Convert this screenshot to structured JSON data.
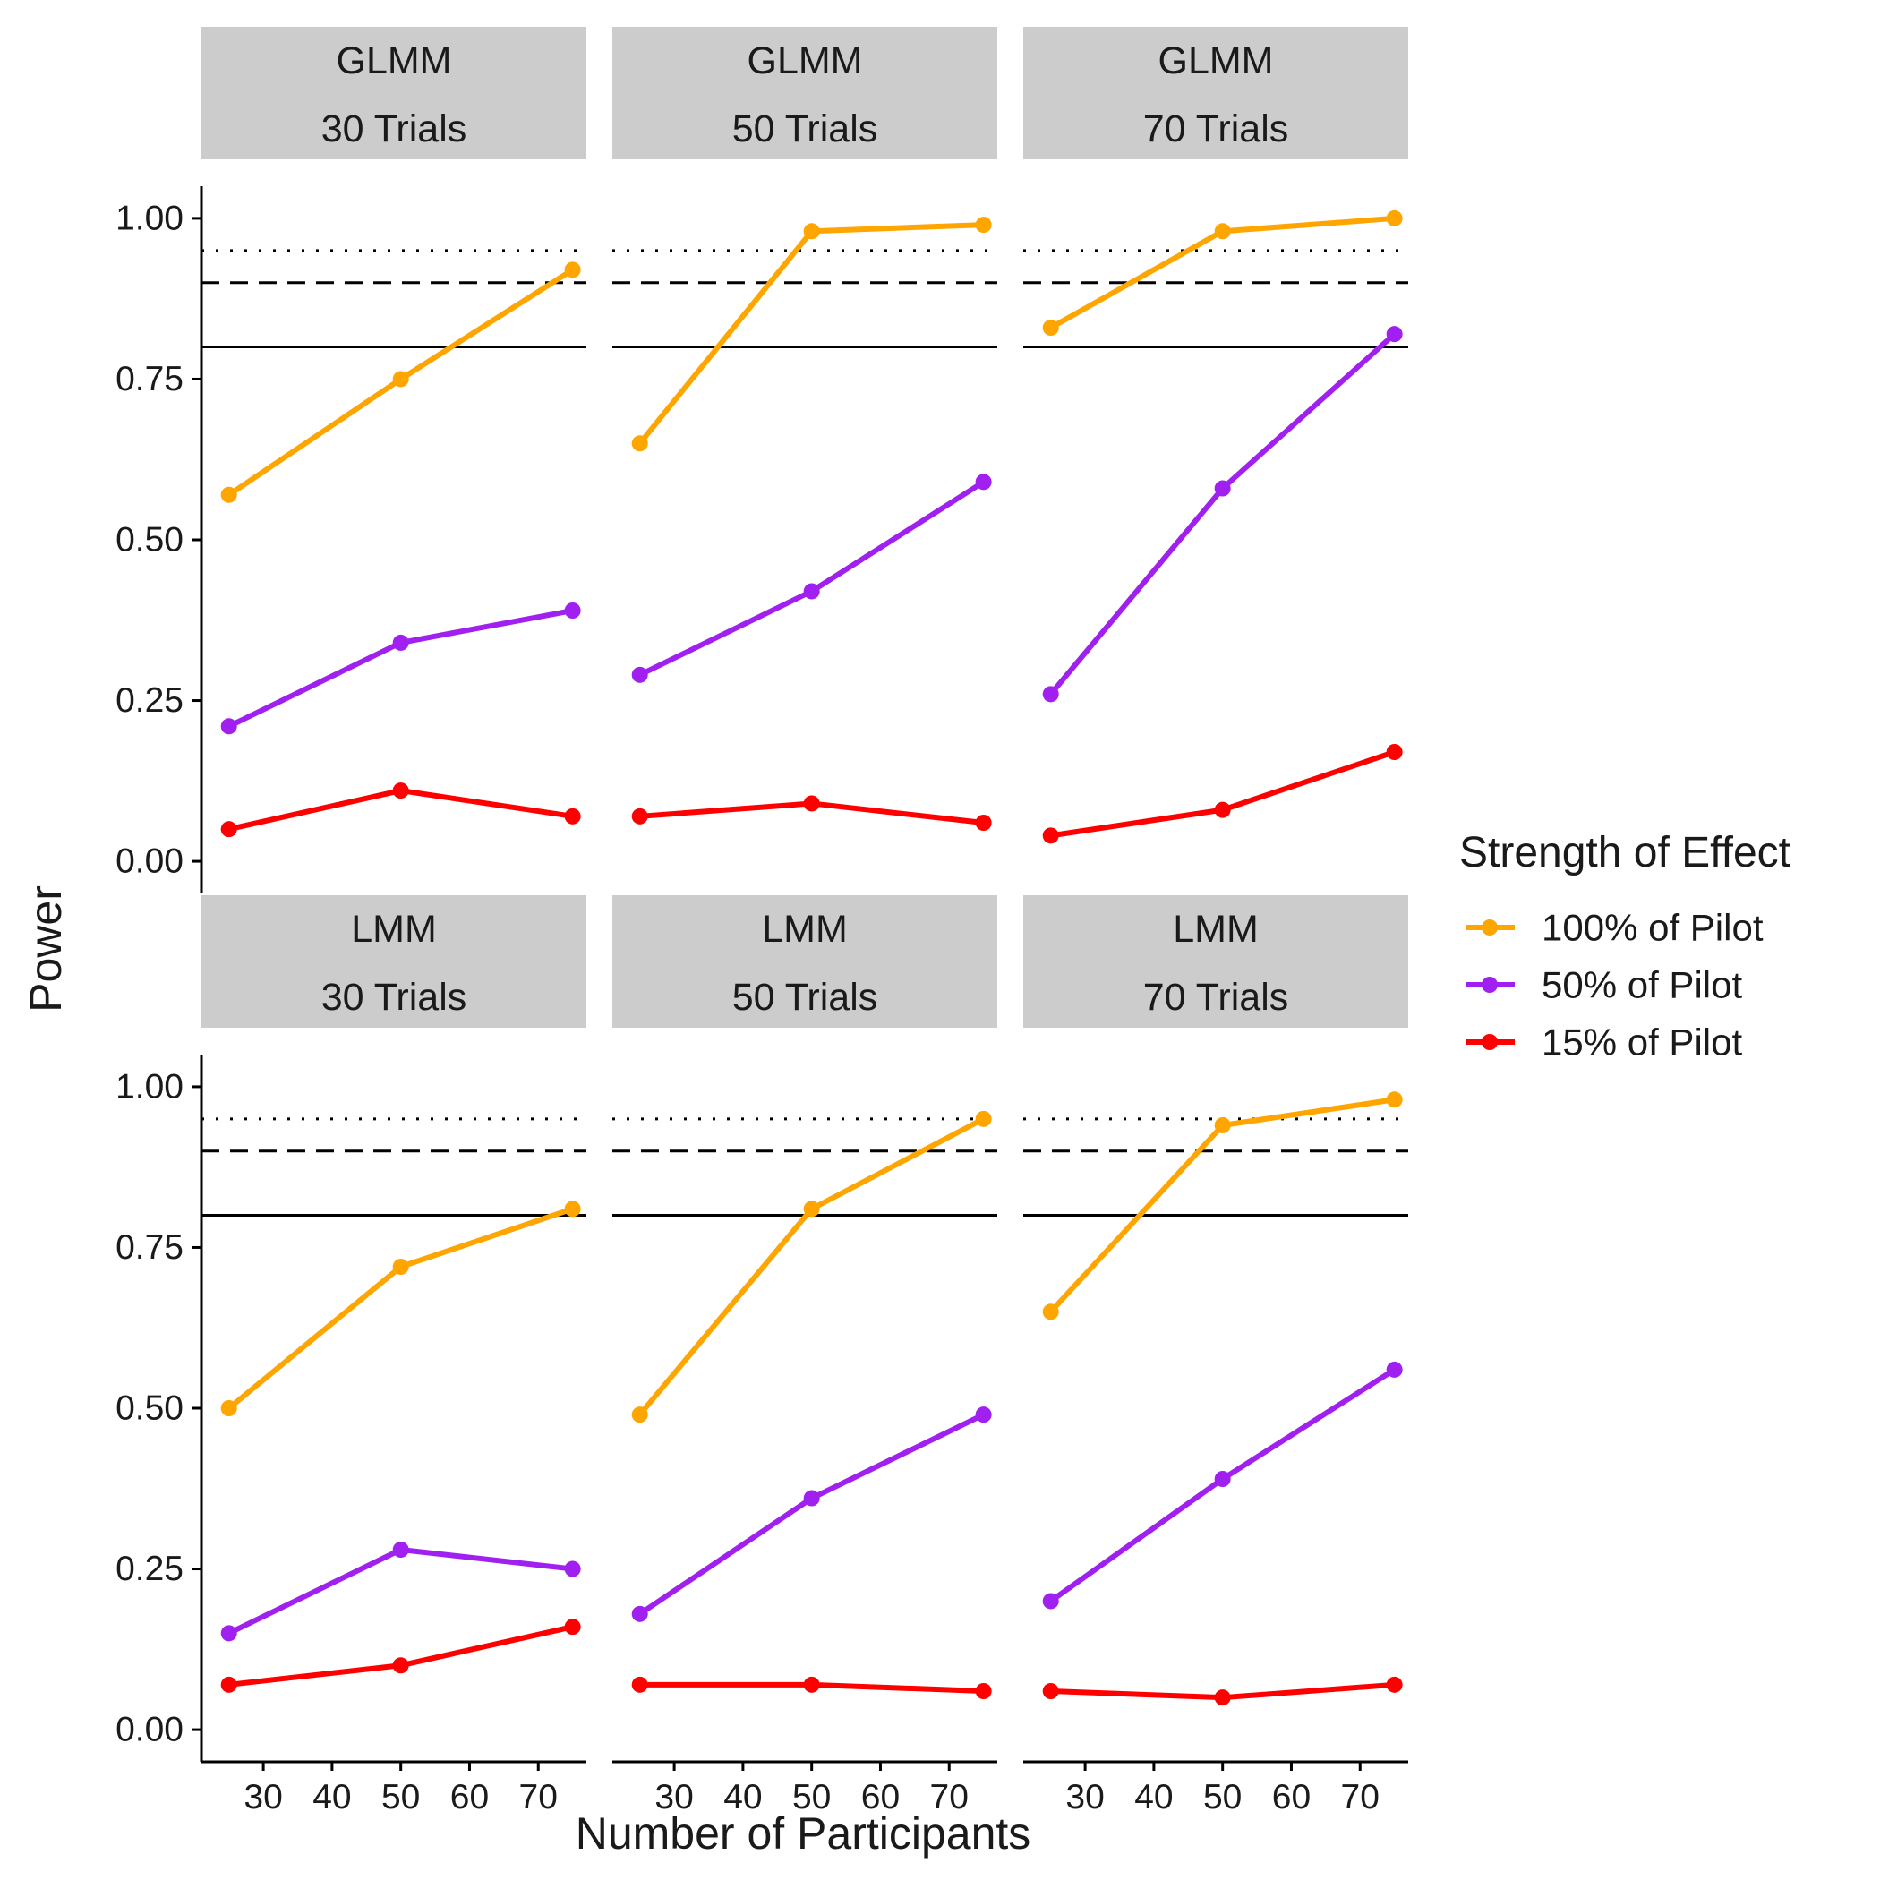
{
  "chart_data": {
    "type": "line",
    "ylabel": "Power",
    "xlabel": "Number of Participants",
    "x": [
      25,
      50,
      75
    ],
    "x_ticks": [
      "30",
      "40",
      "50",
      "60",
      "70"
    ],
    "x_tick_values": [
      30,
      40,
      50,
      60,
      70
    ],
    "xlim": [
      21,
      77
    ],
    "y_ticks": [
      "0.00",
      "0.25",
      "0.50",
      "0.75",
      "1.00"
    ],
    "y_tick_values": [
      0,
      0.25,
      0.5,
      0.75,
      1.0
    ],
    "ylim": [
      -0.05,
      1.05
    ],
    "reference_lines": [
      {
        "value": 0.8,
        "style": "solid"
      },
      {
        "value": 0.9,
        "style": "dashed"
      },
      {
        "value": 0.95,
        "style": "dotted"
      }
    ],
    "grid": false,
    "legend": {
      "title": "Strength of Effect",
      "position": "right",
      "entries": [
        {
          "label": "100% of Pilot",
          "color": "#FFA500"
        },
        {
          "label": "50% of Pilot",
          "color": "#A020F0"
        },
        {
          "label": "15% of Pilot",
          "color": "#FF0000"
        }
      ]
    },
    "panels": [
      {
        "model": "GLMM",
        "trials": "30 Trials",
        "series": [
          {
            "name": "100% of Pilot",
            "values": [
              0.57,
              0.75,
              0.92
            ]
          },
          {
            "name": "50% of Pilot",
            "values": [
              0.21,
              0.34,
              0.39
            ]
          },
          {
            "name": "15% of Pilot",
            "values": [
              0.05,
              0.11,
              0.07
            ]
          }
        ]
      },
      {
        "model": "GLMM",
        "trials": "50 Trials",
        "series": [
          {
            "name": "100% of Pilot",
            "values": [
              0.65,
              0.98,
              0.99
            ]
          },
          {
            "name": "50% of Pilot",
            "values": [
              0.29,
              0.42,
              0.59
            ]
          },
          {
            "name": "15% of Pilot",
            "values": [
              0.07,
              0.09,
              0.06
            ]
          }
        ]
      },
      {
        "model": "GLMM",
        "trials": "70 Trials",
        "series": [
          {
            "name": "100% of Pilot",
            "values": [
              0.83,
              0.98,
              1.0
            ]
          },
          {
            "name": "50% of Pilot",
            "values": [
              0.26,
              0.58,
              0.82
            ]
          },
          {
            "name": "15% of Pilot",
            "values": [
              0.04,
              0.08,
              0.17
            ]
          }
        ]
      },
      {
        "model": "LMM",
        "trials": "30 Trials",
        "series": [
          {
            "name": "100% of Pilot",
            "values": [
              0.5,
              0.72,
              0.81
            ]
          },
          {
            "name": "50% of Pilot",
            "values": [
              0.15,
              0.28,
              0.25
            ]
          },
          {
            "name": "15% of Pilot",
            "values": [
              0.07,
              0.1,
              0.16
            ]
          }
        ]
      },
      {
        "model": "LMM",
        "trials": "50 Trials",
        "series": [
          {
            "name": "100% of Pilot",
            "values": [
              0.49,
              0.81,
              0.95
            ]
          },
          {
            "name": "50% of Pilot",
            "values": [
              0.18,
              0.36,
              0.49
            ]
          },
          {
            "name": "15% of Pilot",
            "values": [
              0.07,
              0.07,
              0.06
            ]
          }
        ]
      },
      {
        "model": "LMM",
        "trials": "70 Trials",
        "series": [
          {
            "name": "100% of Pilot",
            "values": [
              0.65,
              0.94,
              0.98
            ]
          },
          {
            "name": "50% of Pilot",
            "values": [
              0.2,
              0.39,
              0.56
            ]
          },
          {
            "name": "15% of Pilot",
            "values": [
              0.06,
              0.05,
              0.07
            ]
          }
        ]
      }
    ]
  }
}
